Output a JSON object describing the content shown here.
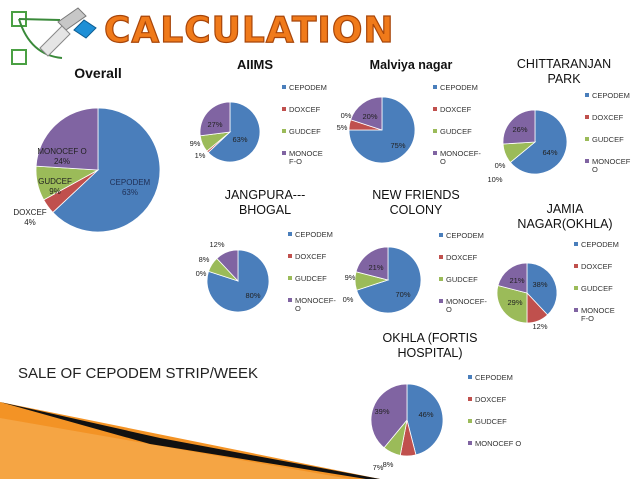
{
  "slide": {
    "title": "CALCULATION",
    "footer_text": "SALE OF CEPODEM STRIP/WEEK"
  },
  "colors": {
    "cepodem": "#4a7ebb",
    "doxcef": "#c0504d",
    "gudcef": "#9bbb59",
    "monocef": "#8064a2",
    "title_orange": "#f07a1a",
    "accent_orange": "#f39325"
  },
  "chart_data": [
    {
      "id": "overall",
      "type": "pie",
      "title": "Overall",
      "categories": [
        "CEPODEM",
        "DOXCEF",
        "GUDCEF",
        "MONOCEF O"
      ],
      "values": [
        63,
        4,
        9,
        24
      ],
      "data_labels": [
        "CEPODEM\n63%",
        "DOXCEF\n4%",
        "GUDCEF\n9%",
        "MONOCEF O\n24%"
      ],
      "legend": []
    },
    {
      "id": "aiims",
      "type": "pie",
      "title": "AIIMS",
      "categories": [
        "CEPODEM",
        "DOXCEF",
        "GUDCEF",
        "MONOCEF-O"
      ],
      "values": [
        63,
        1,
        9,
        27
      ],
      "data_labels": [
        "63%",
        "1%",
        "9%",
        "27%"
      ],
      "legend": [
        "CEPODEM",
        "DOXCEF",
        "GUDCEF",
        "MONOCE\nF-O"
      ]
    },
    {
      "id": "malviya",
      "type": "pie",
      "title": "Malviya nagar",
      "categories": [
        "CEPODEM",
        "DOXCEF",
        "GUDCEF",
        "MONOCEF-O"
      ],
      "values": [
        75,
        5,
        0,
        20
      ],
      "data_labels": [
        "75%",
        "5%",
        "0%",
        "20%"
      ],
      "legend": [
        "CEPODEM",
        "DOXCEF",
        "GUDCEF",
        "MONOCEF-\nO"
      ]
    },
    {
      "id": "chittaranjan",
      "type": "pie",
      "title": "CHITTARANJAN\nPARK",
      "categories": [
        "CEPODEM",
        "DOXCEF",
        "GUDCEF",
        "MONOCEF O"
      ],
      "values": [
        64,
        0,
        10,
        26
      ],
      "data_labels": [
        "64%",
        "0%",
        "10%",
        "26%"
      ],
      "legend": [
        "CEPODEM",
        "DOXCEF",
        "GUDCEF",
        "MONOCEF\nO"
      ]
    },
    {
      "id": "jangpura",
      "type": "pie",
      "title": "JANGPURA---\nBHOGAL",
      "categories": [
        "CEPODEM",
        "DOXCEF",
        "GUDCEF",
        "MONOCEF-O"
      ],
      "values": [
        80,
        0,
        8,
        12
      ],
      "data_labels": [
        "80%",
        "0%",
        "8%",
        "12%"
      ],
      "legend": [
        "CEPODEM",
        "DOXCEF",
        "GUDCEF",
        "MONOCEF-\nO"
      ]
    },
    {
      "id": "newfriends",
      "type": "pie",
      "title": "NEW FRIENDS\nCOLONY",
      "categories": [
        "CEPODEM",
        "DOXCEF",
        "GUDCEF",
        "MONOCEF-O"
      ],
      "values": [
        70,
        0,
        9,
        21
      ],
      "data_labels": [
        "70%",
        "0%",
        "9%",
        "21%"
      ],
      "legend": [
        "CEPODEM",
        "DOXCEF",
        "GUDCEF",
        "MONOCEF-\nO"
      ]
    },
    {
      "id": "jamia",
      "type": "pie",
      "title": "JAMIA\nNAGAR(OKHLA)",
      "categories": [
        "CEPODEM",
        "DOXCEF",
        "GUDCEF",
        "MONOCEF-O"
      ],
      "values": [
        38,
        12,
        29,
        21
      ],
      "data_labels": [
        "38%",
        "12%",
        "29%",
        "21%"
      ],
      "legend": [
        "CEPODEM",
        "DOXCEF",
        "GUDCEF",
        "MONOCE\nF-O"
      ]
    },
    {
      "id": "okhla",
      "type": "pie",
      "title": "OKHLA (FORTIS\nHOSPITAL)",
      "categories": [
        "CEPODEM",
        "DOXCEF",
        "GUDCEF",
        "MONOCEF O"
      ],
      "values": [
        46,
        7,
        8,
        39
      ],
      "data_labels": [
        "46%",
        "7%",
        "8%",
        "39%"
      ],
      "legend": [
        "CEPODEM",
        "DOXCEF",
        "GUDCEF",
        "MONOCEF O"
      ]
    }
  ]
}
